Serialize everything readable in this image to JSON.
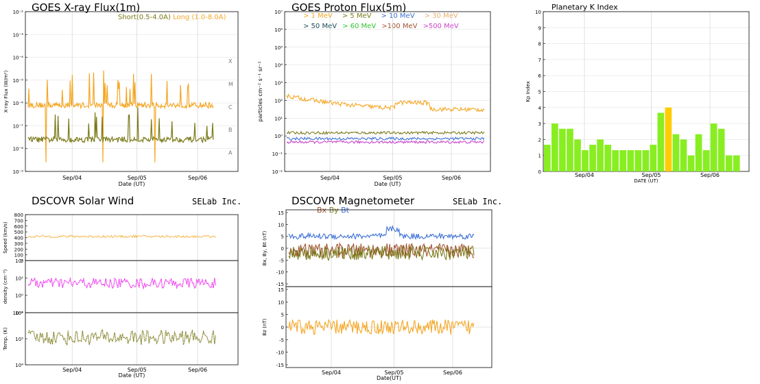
{
  "colors": {
    "short": "#7a7a1a",
    "long": "#f5a623",
    "p1": "#f5a623",
    "p5": "#7a7a1a",
    "p10": "#3b6fd4",
    "p30": "#e8b070",
    "p50": "#1a4a5a",
    "p60": "#2ec52e",
    "p100": "#a0522d",
    "p500": "#cc44cc",
    "kp_green": "#88ee22",
    "kp_yellow": "#ffcc00",
    "speed": "#f5a623",
    "density": "#ee22ee",
    "temp": "#7a7a1a",
    "bx": "#a0522d",
    "by": "#7a7a1a",
    "bt": "#3b6fd4",
    "bz": "#f5a623"
  },
  "xray": {
    "title": "GOES X-ray Flux(1m)",
    "ylabel": "X-ray Flux (W/m²)",
    "xlabel": "Date (UT)",
    "legend_short": "Short(0.5-4.0A)",
    "legend_long": "Long (1.0-8.0A)",
    "class_labels": [
      "X",
      "M",
      "C",
      "B",
      "A"
    ]
  },
  "proton": {
    "title": "GOES Proton Flux(5m)",
    "ylabel": "particles cm⁻² s⁻¹ sr⁻¹",
    "xlabel": "Date (UT)",
    "legend": [
      "> 1 MeV",
      "> 5 MeV",
      "> 10 MeV",
      "> 30 MeV",
      "> 50 MeV",
      "> 60 MeV",
      ">100 MeV",
      ">500 MeV"
    ]
  },
  "kp": {
    "title": "Planetary K Index",
    "ylabel": "Kp Index",
    "xlabel": "DATE (UT)"
  },
  "wind": {
    "title": "DSCOVR Solar Wind",
    "brand": "SELab Inc.",
    "speed_label": "Speed (km/s)",
    "density_label": "density (cm⁻³)",
    "temp_label": "Temp. (K)",
    "xlabel": "Date (UT)"
  },
  "mag": {
    "title": "DSCOVR Magnetometer",
    "brand": "SELab Inc.",
    "legend_bx": "Bx",
    "legend_by": "By",
    "legend_bt": "Bt",
    "bxyt_label": "Bx, By, Bt (nT)",
    "bz_label": "Bz (nT)",
    "xlabel": "Date(UT)"
  },
  "chart_data": [
    {
      "type": "line",
      "title": "GOES X-ray Flux(1m)",
      "ylabel": "X-ray Flux (W/m²)",
      "xlabel": "Date (UT)",
      "yscale": "log",
      "ylim": [
        1e-09,
        0.01
      ],
      "yticks": [
        "10⁻⁹",
        "10⁻⁸",
        "10⁻⁷",
        "10⁻⁶",
        "10⁻⁵",
        "10⁻⁴",
        "10⁻³",
        "10⁻²"
      ],
      "xticks": [
        "Sep/04",
        "Sep/05",
        "Sep/06"
      ],
      "series": [
        {
          "name": "Long (1.0-8.0A)",
          "baseline": 8e-07,
          "color_key": "long"
        },
        {
          "name": "Short(0.5-4.0A)",
          "baseline": 2.5e-08,
          "color_key": "short"
        }
      ]
    },
    {
      "type": "line",
      "title": "GOES Proton Flux(5m)",
      "ylabel": "particles cm⁻² s⁻¹ sr⁻¹",
      "xlabel": "Date (UT)",
      "yscale": "log",
      "ylim": [
        0.01,
        10000000.0
      ],
      "yticks": [
        "10⁻²",
        "10⁻¹",
        "10⁰",
        "10¹",
        "10²",
        "10³",
        "10⁴",
        "10⁵",
        "10⁶",
        "10⁷"
      ],
      "xticks": [
        "Sep/04",
        "Sep/05",
        "Sep/06"
      ],
      "series": [
        {
          "name": "> 1 MeV",
          "baseline": 30,
          "color_key": "p1"
        },
        {
          "name": "> 5 MeV",
          "baseline": 1.5,
          "color_key": "p5"
        },
        {
          "name": "> 10 MeV",
          "baseline": 0.7,
          "color_key": "p10"
        },
        {
          "name": ">500 MeV",
          "baseline": 0.45,
          "color_key": "p500"
        }
      ]
    },
    {
      "type": "bar",
      "title": "Planetary K Index",
      "ylabel": "Kp Index",
      "xlabel": "DATE (UT)",
      "ylim": [
        0,
        10
      ],
      "yticks": [
        "0",
        "1",
        "2",
        "3",
        "4",
        "5",
        "6",
        "7",
        "8",
        "9",
        "10"
      ],
      "xticks": [
        "Sep/04",
        "Sep/05",
        "Sep/06"
      ],
      "values": [
        1.67,
        3.0,
        2.67,
        2.67,
        2.0,
        1.33,
        1.67,
        2.0,
        1.67,
        1.33,
        1.33,
        1.33,
        1.33,
        1.33,
        1.67,
        3.67,
        4.0,
        2.33,
        2.0,
        1.0,
        2.33,
        1.33,
        3.0,
        2.67,
        1.0,
        1.0
      ],
      "highlight_index": 16
    },
    {
      "type": "scatter",
      "title": "DSCOVR Solar Wind",
      "panels": [
        {
          "label": "Speed (km/s)",
          "ylim": [
            0,
            800
          ],
          "yticks": [
            "0",
            "100",
            "200",
            "300",
            "400",
            "500",
            "600",
            "700",
            "800"
          ],
          "typical": 420
        },
        {
          "label": "density (cm⁻³)",
          "yscale": "log",
          "ylim": [
            0.1,
            100
          ],
          "yticks": [
            "10⁻¹",
            "10⁰",
            "10¹",
            "10²"
          ],
          "typical": 5
        },
        {
          "label": "Temp. (K)",
          "yscale": "log",
          "ylim": [
            5000,
            1500000
          ],
          "yticks": [
            "10⁴",
            "10⁵",
            "10⁶"
          ],
          "typical": 100000
        }
      ],
      "xticks": [
        "Sep/04",
        "Sep/05",
        "Sep/06"
      ]
    },
    {
      "type": "scatter",
      "title": "DSCOVR Magnetometer",
      "panels": [
        {
          "label": "Bx, By, Bt (nT)",
          "ylim": [
            -16,
            16
          ],
          "yticks": [
            "-15",
            "-10",
            "-5",
            "0",
            "5",
            "10",
            "15"
          ]
        },
        {
          "label": "Bz (nT)",
          "ylim": [
            -16,
            16
          ],
          "yticks": [
            "-15",
            "-10",
            "-5",
            "0",
            "5",
            "10",
            "15"
          ]
        }
      ],
      "xticks": [
        "Sep/04",
        "Sep/05",
        "Sep/06"
      ]
    }
  ]
}
